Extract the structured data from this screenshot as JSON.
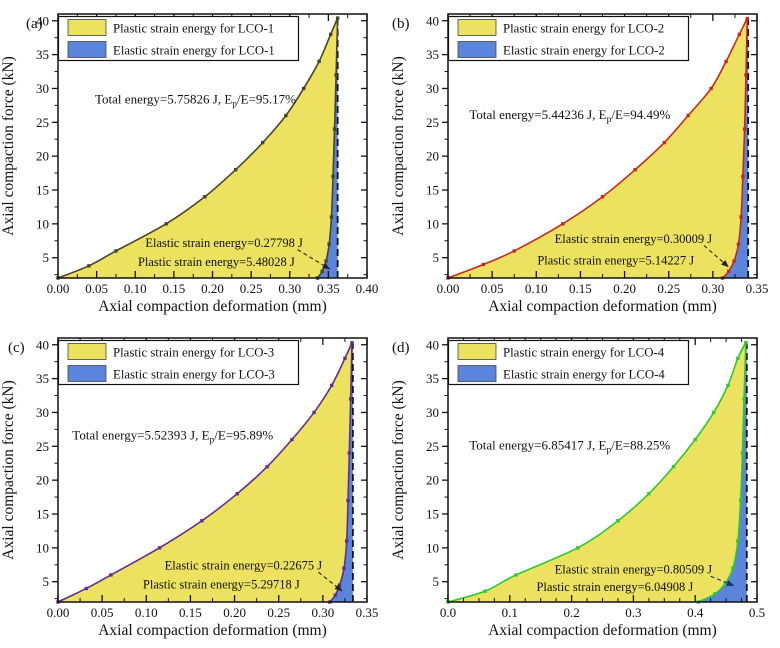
{
  "figure": {
    "xlabel": "Axial compaction deformation (mm)",
    "ylabel": "Axial compaction force (kN)"
  },
  "colors": {
    "plastic_fill": "#ece25f",
    "elastic_fill": "#5b85dd",
    "axis": "#111111",
    "legend_bg": "#ffffff"
  },
  "chart_data": [
    {
      "type": "area",
      "panel_label": "(a)",
      "xlabel": "Axial compaction deformation (mm)",
      "ylabel": "Axial compaction force (kN)",
      "xlim": [
        0,
        0.4
      ],
      "ylim": [
        2,
        41
      ],
      "xticks": [
        0,
        0.05,
        0.1,
        0.15,
        0.2,
        0.25,
        0.3,
        0.35,
        0.4
      ],
      "xtick_labels": [
        "0.00",
        "0.05",
        "0.10",
        "0.15",
        "0.20",
        "0.25",
        "0.30",
        "0.35",
        "0.40"
      ],
      "yticks": [
        5,
        10,
        15,
        20,
        25,
        30,
        35,
        40
      ],
      "xminor_step": 0.025,
      "yminor_step": 2.5,
      "legend": [
        {
          "label": "Plastic strain energy for LCO-1",
          "color": "#ece25f"
        },
        {
          "label": "Elastic strain energy for LCO-1",
          "color": "#5b85dd"
        }
      ],
      "line_color": "#45452f",
      "arrow_color": "#222222",
      "max_deformation": 0.362,
      "series": [
        {
          "name": "loading",
          "points": [
            [
              0,
              2
            ],
            [
              0.04,
              3.8
            ],
            [
              0.075,
              6
            ],
            [
              0.14,
              10
            ],
            [
              0.19,
              14
            ],
            [
              0.23,
              18
            ],
            [
              0.265,
              22
            ],
            [
              0.295,
              26
            ],
            [
              0.318,
              30
            ],
            [
              0.338,
              34
            ],
            [
              0.353,
              38
            ],
            [
              0.362,
              40.4
            ]
          ]
        },
        {
          "name": "unloading",
          "points": [
            [
              0.362,
              40.4
            ],
            [
              0.36,
              32
            ],
            [
              0.358,
              24
            ],
            [
              0.356,
              17
            ],
            [
              0.354,
              11
            ],
            [
              0.351,
              7
            ],
            [
              0.347,
              4.5
            ],
            [
              0.342,
              3
            ],
            [
              0.336,
              2
            ]
          ]
        }
      ],
      "annotations": {
        "total": {
          "text": "Total energy=5.75826 J, E_p/E=95.17%",
          "pos": [
            0.178,
            27.8
          ]
        },
        "elastic": {
          "text": "Elastic strain energy=0.27798 J",
          "pos": [
            0.215,
            6.6
          ]
        },
        "plastic": {
          "text": "Plastic strain energy=5.48028 J",
          "pos": [
            0.205,
            3.8
          ]
        },
        "arrow": {
          "from": [
            0.31,
            6.2
          ],
          "to": [
            0.352,
            3.3
          ]
        }
      },
      "label_pos": [
        26,
        28
      ]
    },
    {
      "type": "area",
      "panel_label": "(b)",
      "xlabel": "Axial compaction deformation (mm)",
      "ylabel": "Axial compaction force (kN)",
      "xlim": [
        0,
        0.35
      ],
      "ylim": [
        2,
        41
      ],
      "xticks": [
        0,
        0.05,
        0.1,
        0.15,
        0.2,
        0.25,
        0.3,
        0.35
      ],
      "xtick_labels": [
        "0.00",
        "0.05",
        "0.10",
        "0.15",
        "0.20",
        "0.25",
        "0.30",
        "0.35"
      ],
      "yticks": [
        5,
        10,
        15,
        20,
        25,
        30,
        35,
        40
      ],
      "xminor_step": 0.025,
      "yminor_step": 2.5,
      "legend": [
        {
          "label": "Plastic strain energy for LCO-2",
          "color": "#ece25f"
        },
        {
          "label": "Elastic strain energy for LCO-2",
          "color": "#5b85dd"
        }
      ],
      "line_color": "#c22a1d",
      "arrow_color": "#222222",
      "max_deformation": 0.34,
      "series": [
        {
          "name": "loading",
          "points": [
            [
              0,
              2
            ],
            [
              0.04,
              4
            ],
            [
              0.075,
              6
            ],
            [
              0.13,
              10
            ],
            [
              0.175,
              14
            ],
            [
              0.212,
              18
            ],
            [
              0.245,
              22
            ],
            [
              0.272,
              26
            ],
            [
              0.298,
              30
            ],
            [
              0.315,
              34
            ],
            [
              0.33,
              38
            ],
            [
              0.339,
              40.3
            ]
          ]
        },
        {
          "name": "unloading",
          "points": [
            [
              0.339,
              40.3
            ],
            [
              0.3375,
              32
            ],
            [
              0.336,
              24
            ],
            [
              0.334,
              17
            ],
            [
              0.332,
              11
            ],
            [
              0.329,
              7
            ],
            [
              0.324,
              4.5
            ],
            [
              0.318,
              3
            ],
            [
              0.311,
              2
            ]
          ]
        }
      ],
      "annotations": {
        "total": {
          "text": "Total energy=5.44236 J, E_p/E=94.49%",
          "pos": [
            0.138,
            25.5
          ]
        },
        "elastic": {
          "text": "Elastic strain energy=0.30009 J",
          "pos": [
            0.21,
            7.2
          ]
        },
        "plastic": {
          "text": "Plastic strain energy=5.14227 J",
          "pos": [
            0.19,
            4.0
          ]
        },
        "arrow": {
          "from": [
            0.29,
            6.8
          ],
          "to": [
            0.318,
            3.6
          ]
        }
      },
      "label_pos": [
        2,
        28
      ]
    },
    {
      "type": "area",
      "panel_label": "(c)",
      "xlabel": "Axial compaction deformation (mm)",
      "ylabel": "Axial compaction force (kN)",
      "xlim": [
        0,
        0.35
      ],
      "ylim": [
        2,
        41
      ],
      "xticks": [
        0,
        0.05,
        0.1,
        0.15,
        0.2,
        0.25,
        0.3,
        0.35
      ],
      "xtick_labels": [
        "0.00",
        "0.05",
        "0.10",
        "0.15",
        "0.20",
        "0.25",
        "0.30",
        "0.35"
      ],
      "yticks": [
        5,
        10,
        15,
        20,
        25,
        30,
        35,
        40
      ],
      "xminor_step": 0.025,
      "yminor_step": 2.5,
      "legend": [
        {
          "label": "Plastic strain energy for LCO-3",
          "color": "#ece25f"
        },
        {
          "label": "Elastic strain energy for LCO-3",
          "color": "#5b85dd"
        }
      ],
      "line_color": "#5f2e8e",
      "arrow_color": "#222222",
      "max_deformation": 0.334,
      "series": [
        {
          "name": "loading",
          "points": [
            [
              0,
              2
            ],
            [
              0.032,
              4
            ],
            [
              0.06,
              6
            ],
            [
              0.115,
              10
            ],
            [
              0.163,
              14
            ],
            [
              0.203,
              18
            ],
            [
              0.237,
              22
            ],
            [
              0.265,
              26
            ],
            [
              0.29,
              30
            ],
            [
              0.31,
              34
            ],
            [
              0.325,
              38
            ],
            [
              0.333,
              40.3
            ]
          ]
        },
        {
          "name": "unloading",
          "points": [
            [
              0.333,
              40.3
            ],
            [
              0.3315,
              32
            ],
            [
              0.33,
              24
            ],
            [
              0.3285,
              17
            ],
            [
              0.327,
              11
            ],
            [
              0.324,
              7
            ],
            [
              0.319,
              4.5
            ],
            [
              0.314,
              3
            ],
            [
              0.308,
              2
            ]
          ]
        }
      ],
      "annotations": {
        "total": {
          "text": "Total energy=5.52393 J, E_p/E=95.89%",
          "pos": [
            0.13,
            26.0
          ]
        },
        "elastic": {
          "text": "Elastic strain energy=0.22675 J",
          "pos": [
            0.21,
            6.8
          ]
        },
        "plastic": {
          "text": "Plastic strain energy=5.29718 J",
          "pos": [
            0.185,
            4.0
          ]
        },
        "arrow": {
          "from": [
            0.295,
            6.4
          ],
          "to": [
            0.322,
            3.6
          ]
        }
      },
      "label_pos": [
        8,
        28
      ]
    },
    {
      "type": "area",
      "panel_label": "(d)",
      "xlabel": "Axial compaction deformation (mm)",
      "ylabel": "Axial compaction force (kN)",
      "xlim": [
        0,
        0.5
      ],
      "ylim": [
        2,
        41
      ],
      "xticks": [
        0,
        0.1,
        0.2,
        0.3,
        0.4,
        0.5
      ],
      "xtick_labels": [
        "0.0",
        "0.1",
        "0.2",
        "0.3",
        "0.4",
        "0.5"
      ],
      "yticks": [
        5,
        10,
        15,
        20,
        25,
        30,
        35,
        40
      ],
      "xminor_step": 0.025,
      "yminor_step": 2.5,
      "legend": [
        {
          "label": "Plastic strain energy for LCO-4",
          "color": "#ece25f"
        },
        {
          "label": "Elastic strain energy for LCO-4",
          "color": "#5b85dd"
        }
      ],
      "line_color": "#2fc82f",
      "arrow_color": "#1b2f77",
      "max_deformation": 0.4835,
      "series": [
        {
          "name": "loading",
          "points": [
            [
              0,
              2
            ],
            [
              0.06,
              3.6
            ],
            [
              0.11,
              6
            ],
            [
              0.21,
              10
            ],
            [
              0.275,
              14
            ],
            [
              0.325,
              18
            ],
            [
              0.365,
              22
            ],
            [
              0.4,
              26
            ],
            [
              0.43,
              30
            ],
            [
              0.453,
              34
            ],
            [
              0.469,
              38
            ],
            [
              0.482,
              40.3
            ]
          ]
        },
        {
          "name": "unloading",
          "points": [
            [
              0.482,
              40.3
            ],
            [
              0.479,
              32
            ],
            [
              0.4765,
              24
            ],
            [
              0.4735,
              17
            ],
            [
              0.469,
              11
            ],
            [
              0.461,
              7
            ],
            [
              0.449,
              4.8
            ],
            [
              0.432,
              3.2
            ],
            [
              0.405,
              2
            ]
          ]
        }
      ],
      "annotations": {
        "total": {
          "text": "Total energy=6.85417 J, E_p/E=88.25%",
          "pos": [
            0.197,
            24.5
          ]
        },
        "elastic": {
          "text": "Elastic strain energy=0.80509 J",
          "pos": [
            0.3,
            6.2
          ]
        },
        "plastic": {
          "text": "Plastic strain energy=6.04908 J",
          "pos": [
            0.27,
            3.6
          ]
        },
        "arrow": {
          "from": [
            0.425,
            5.8
          ],
          "to": [
            0.463,
            4.4
          ]
        }
      },
      "label_pos": [
        2,
        28
      ]
    }
  ]
}
